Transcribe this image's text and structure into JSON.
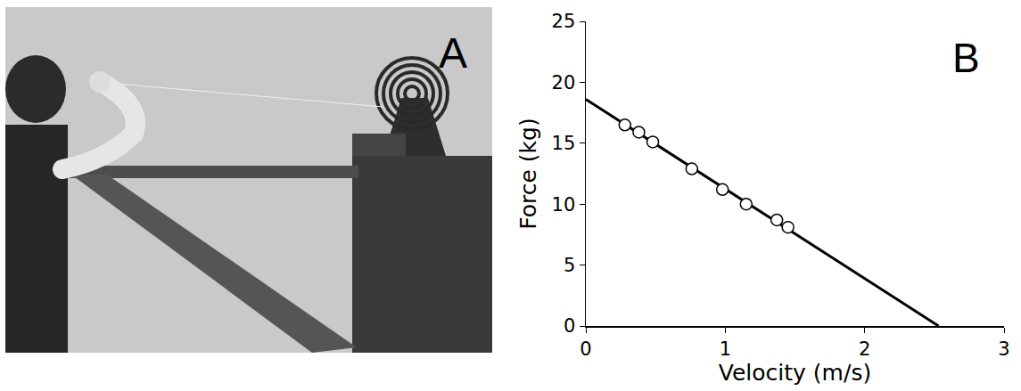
{
  "panel_a": {
    "letter": "A"
  },
  "chart_data": {
    "type": "scatter",
    "xlabel": "Velocity (m/s)",
    "ylabel": "Force (kg)",
    "xlim": [
      0,
      3
    ],
    "ylim": [
      0,
      25
    ],
    "xticks": [
      0,
      1,
      2,
      3
    ],
    "yticks": [
      0,
      5,
      10,
      15,
      20,
      25
    ],
    "grid": false,
    "annotations": [
      {
        "text": "B"
      }
    ],
    "series": [
      {
        "type": "line",
        "color": "#000000",
        "line_style": "solid",
        "x": [
          0,
          2.53
        ],
        "values": [
          18.6,
          0
        ]
      },
      {
        "type": "scatter",
        "color": "#000000",
        "marker": "open circle",
        "x": [
          0.28,
          0.38,
          0.48,
          0.76,
          0.98,
          1.15,
          1.37,
          1.45
        ],
        "values": [
          16.5,
          15.9,
          15.1,
          12.9,
          11.2,
          10.0,
          8.7,
          8.1
        ]
      }
    ]
  }
}
